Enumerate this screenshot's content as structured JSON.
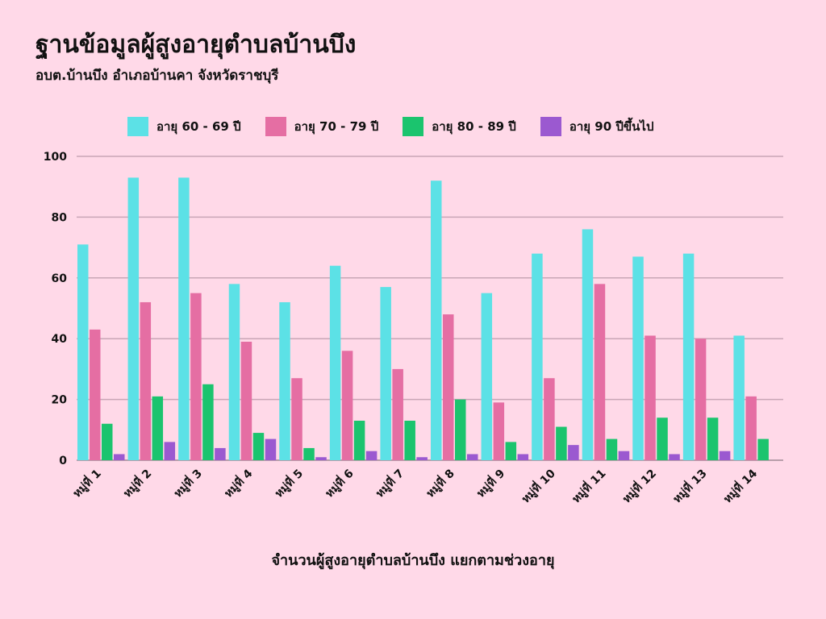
{
  "chart_data": {
    "type": "bar",
    "title": "ฐานข้อมูลผู้สูงอายุตำบลบ้านบึง",
    "subtitle": "อบต.บ้านบึง อำเภอบ้านคา จังหวัดราชบุรี",
    "xlabel": "จำนวนผู้สูงอายุตำบลบ้านบึง แยกตามช่วงอายุ",
    "ylabel": "",
    "ylim": [
      0,
      100
    ],
    "yticks": [
      "0",
      "20",
      "40",
      "60",
      "80",
      "100"
    ],
    "grid": true,
    "legend_position": "top",
    "categories": [
      "หมู่ที่ 1",
      "หมู่ที่ 2",
      "หมู่ที่ 3",
      "หมู่ที่ 4",
      "หมู่ที่ 5",
      "หมู่ที่ 6",
      "หมู่ที่ 7",
      "หมู่ที่ 8",
      "หมู่ที่ 9",
      "หมู่ที่ 10",
      "หมู่ที่ 11",
      "หมู่ที่ 12",
      "หมู่ที่ 13",
      "หมู่ที่ 14"
    ],
    "series": [
      {
        "name": "อายุ 60 - 69 ปี",
        "color": "#5ce1e6",
        "values": [
          71,
          93,
          93,
          58,
          52,
          64,
          57,
          92,
          55,
          68,
          76,
          67,
          68,
          41
        ]
      },
      {
        "name": "อายุ 70 - 79 ปี",
        "color": "#e56ea3",
        "values": [
          43,
          52,
          55,
          39,
          27,
          36,
          30,
          48,
          19,
          27,
          58,
          41,
          40,
          21
        ]
      },
      {
        "name": "อายุ 80 - 89 ปี",
        "color": "#1bc46e",
        "values": [
          12,
          21,
          25,
          9,
          4,
          13,
          13,
          20,
          6,
          11,
          7,
          14,
          14,
          7
        ]
      },
      {
        "name": "อายุ 90 ปีขึ้นไป",
        "color": "#9b59d0",
        "values": [
          2,
          6,
          4,
          7,
          1,
          3,
          1,
          2,
          2,
          5,
          3,
          2,
          3,
          0
        ]
      }
    ]
  }
}
